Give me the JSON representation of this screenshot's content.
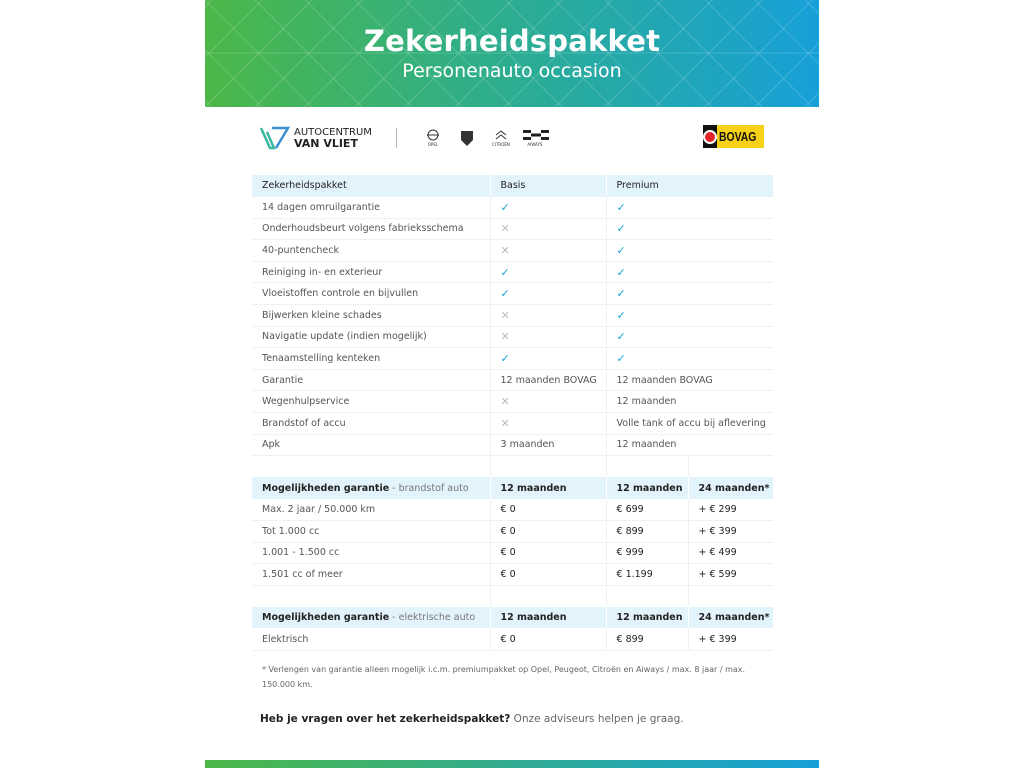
{
  "header": {
    "title": "Zekerheidspakket",
    "subtitle": "Personenauto occasion"
  },
  "logos": {
    "dealer_line1": "AUTOCENTRUM",
    "dealer_line2": "VAN VLIET",
    "brands": [
      "OPEL",
      "PEUGEOT",
      "CITROËN",
      "AIWAYS"
    ],
    "bovag": "BOVAG"
  },
  "colors": {
    "green": "#4cb748",
    "blue": "#16a0d8",
    "check": "#19a3d6",
    "header_row": "#e3f3fb"
  },
  "package_table": {
    "headers": [
      "Zekerheidspakket",
      "Basis",
      "Premium"
    ],
    "rows": [
      [
        "14 dagen omruilgarantie",
        "check",
        "check"
      ],
      [
        "Onderhoudsbeurt volgens fabrieksschema",
        "cross",
        "check"
      ],
      [
        "40-puntencheck",
        "cross",
        "check"
      ],
      [
        "Reiniging in- en exterieur",
        "check",
        "check"
      ],
      [
        "Vloeistoffen controle en bijvullen",
        "check",
        "check"
      ],
      [
        "Bijwerken kleine schades",
        "cross",
        "check"
      ],
      [
        "Navigatie update (indien mogelijk)",
        "cross",
        "check"
      ],
      [
        "Tenaamstelling kenteken",
        "check",
        "check"
      ],
      [
        "Garantie",
        "12 maanden BOVAG",
        "12 maanden BOVAG"
      ],
      [
        "Wegenhulpservice",
        "cross",
        "12 maanden"
      ],
      [
        "Brandstof of accu",
        "cross",
        "Volle tank of accu bij aflevering"
      ],
      [
        "Apk",
        "3 maanden",
        "12 maanden"
      ]
    ]
  },
  "fuel_table": {
    "title": "Mogelijkheden garantie",
    "subtitle": " - brandstof auto",
    "headers": [
      "12 maanden",
      "12 maanden",
      "24 maanden*"
    ],
    "rows": [
      [
        "Max. 2 jaar / 50.000 km",
        "€ 0",
        "€ 699",
        "+ € 299"
      ],
      [
        "Tot 1.000 cc",
        "€ 0",
        "€ 899",
        "+ € 399"
      ],
      [
        "1.001 - 1.500 cc",
        "€ 0",
        "€ 999",
        "+ € 499"
      ],
      [
        "1.501 cc of meer",
        "€ 0",
        "€ 1.199",
        "+ € 599"
      ]
    ]
  },
  "electric_table": {
    "title": "Mogelijkheden garantie",
    "subtitle": " - elektrische auto",
    "headers": [
      "12 maanden",
      "12 maanden",
      "24 maanden*"
    ],
    "rows": [
      [
        "Elektrisch",
        "€ 0",
        "€ 899",
        "+ € 399"
      ]
    ]
  },
  "footnote": "* Verlengen van garantie alleen mogelijk i.c.m. premiumpakket op Opel, Peugeot, Citroën en Aiways / max. 8 jaar / max. 150.000 km.",
  "question": {
    "bold": "Heb je vragen over het zekerheidspakket?",
    "text": " Onze adviseurs helpen je graag."
  }
}
